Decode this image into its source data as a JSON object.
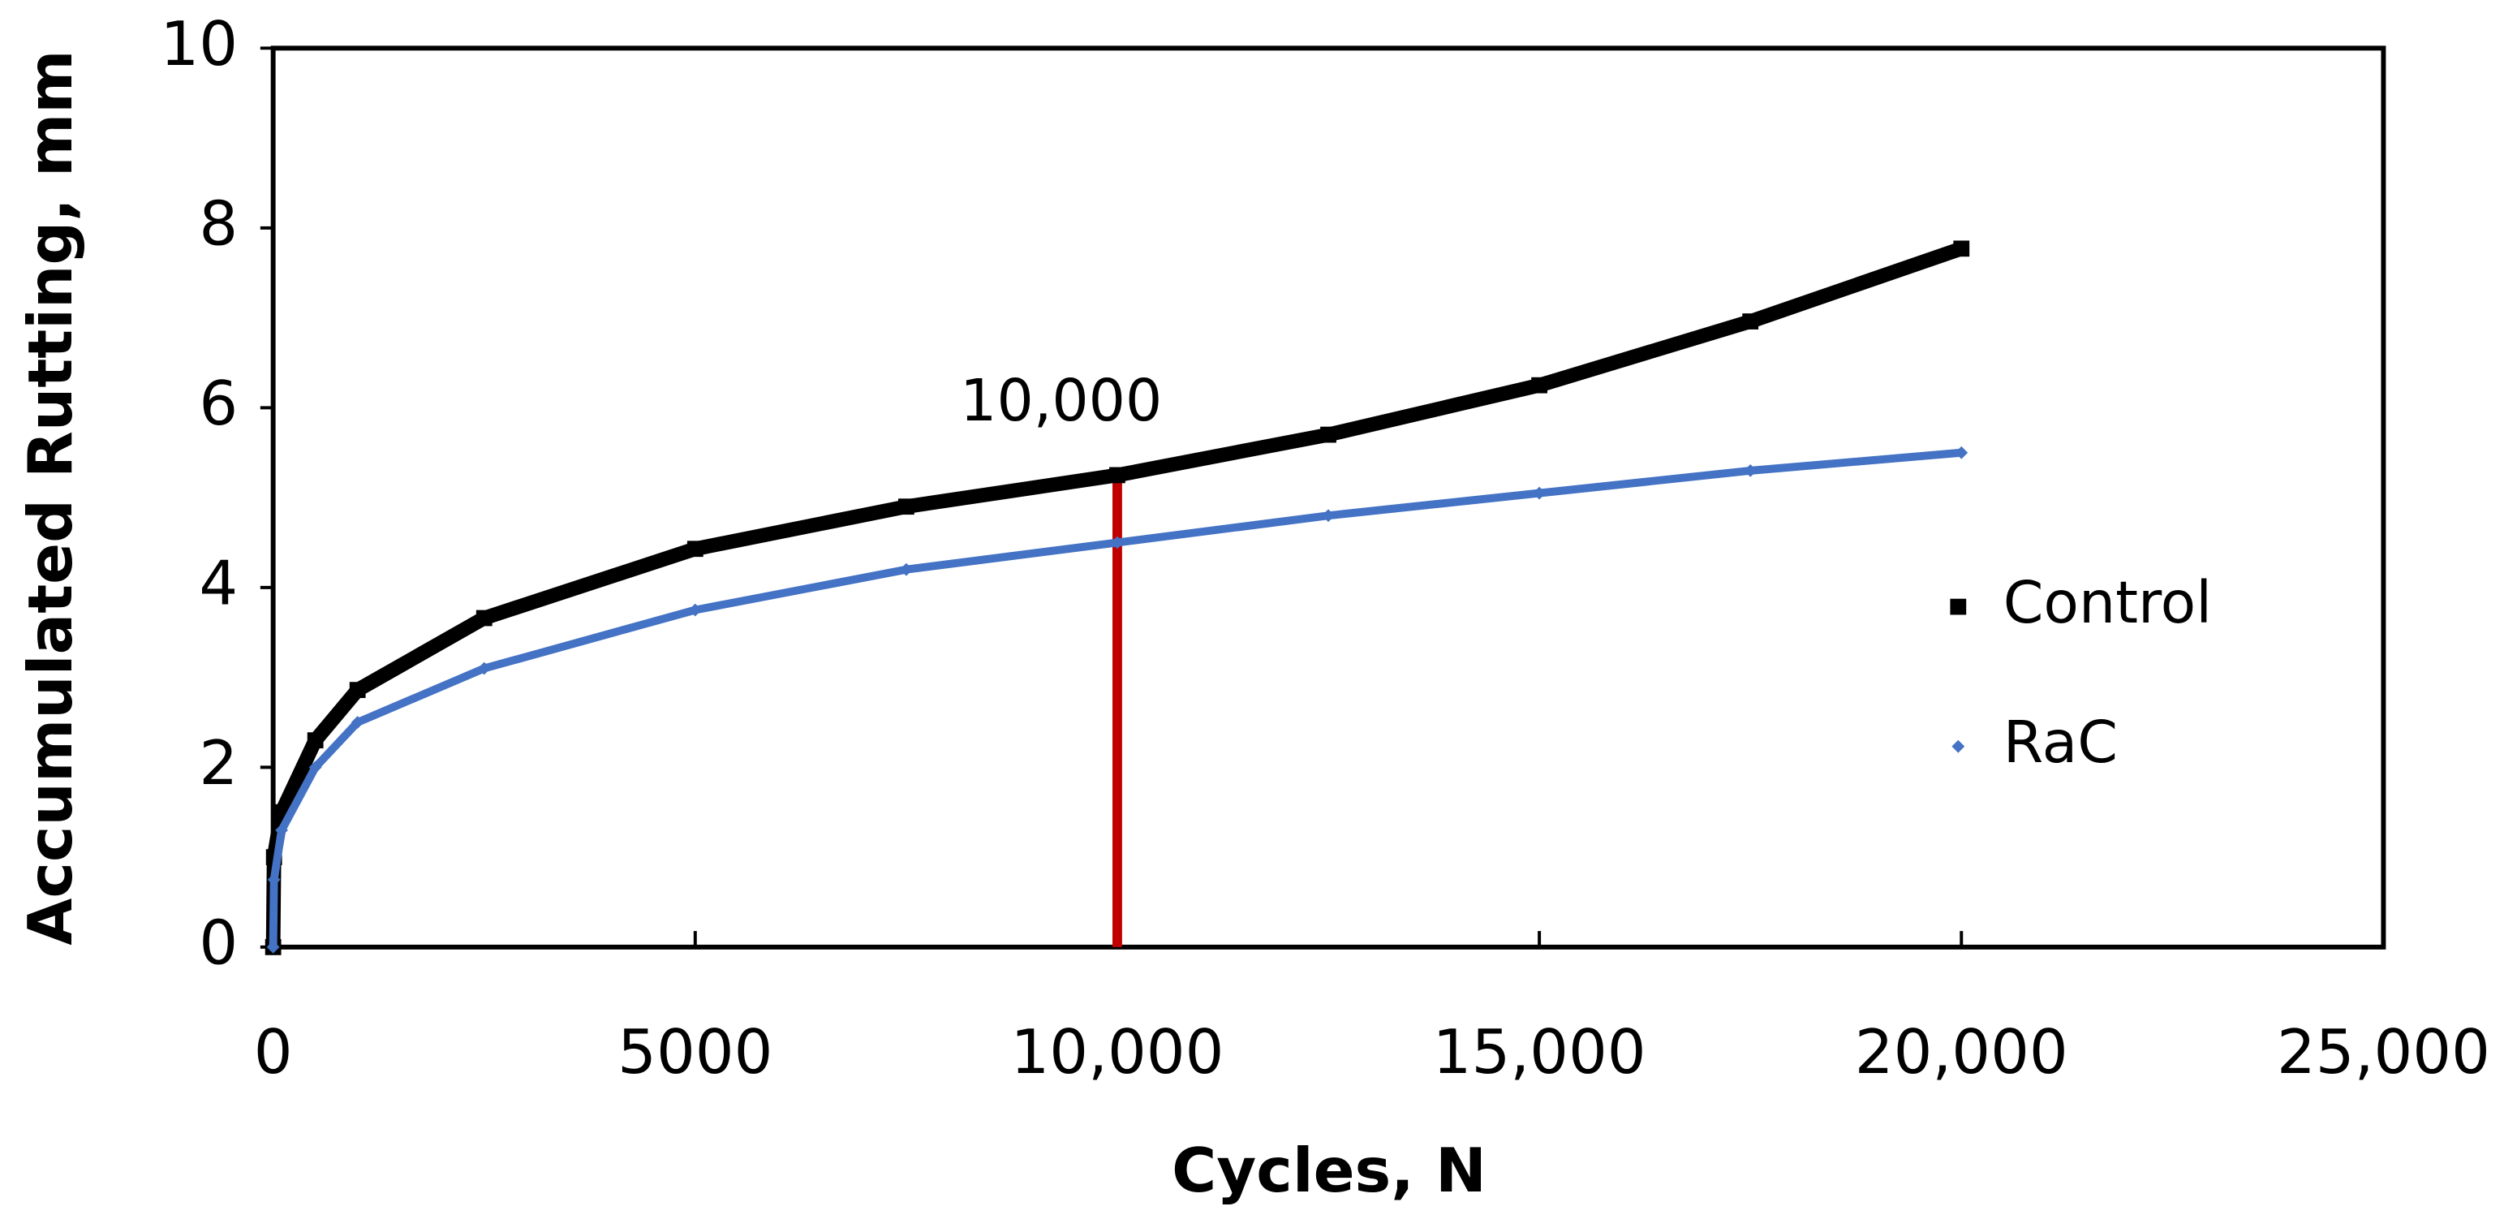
{
  "chart_data": {
    "type": "scatter",
    "x_label": "Cycles, N",
    "y_label": "Accumulated Rutting, mm",
    "x": [
      0,
      10,
      100,
      500,
      1000,
      2500,
      5000,
      7500,
      10000,
      12500,
      15000,
      17500,
      20000
    ],
    "series": [
      {
        "name": "Control",
        "color": "#000000",
        "marker": "square",
        "values": [
          0,
          1.0,
          1.5,
          2.3,
          2.86,
          3.66,
          4.43,
          4.9,
          5.25,
          5.7,
          6.25,
          6.96,
          7.77
        ]
      },
      {
        "name": "RaC",
        "color": "#4472c4",
        "marker": "diamond",
        "values": [
          0,
          0.75,
          1.3,
          2.0,
          2.5,
          3.1,
          3.75,
          4.2,
          4.5,
          4.8,
          5.05,
          5.3,
          5.5
        ]
      }
    ],
    "xlim": [
      0,
      25000
    ],
    "ylim": [
      0,
      10
    ],
    "xticks": [
      0,
      5000,
      {
        "value": 10000,
        "label": "10,000"
      },
      {
        "value": 15000,
        "label": "15,000"
      },
      {
        "value": 20000,
        "label": "20,000"
      },
      {
        "value": 25000,
        "label": "25,000"
      }
    ],
    "yticks": [
      0,
      2,
      4,
      6,
      8,
      10
    ],
    "grid": false,
    "legend": "right",
    "annotation": {
      "text": "10,000",
      "x": 10000,
      "color": "#c00000"
    }
  }
}
